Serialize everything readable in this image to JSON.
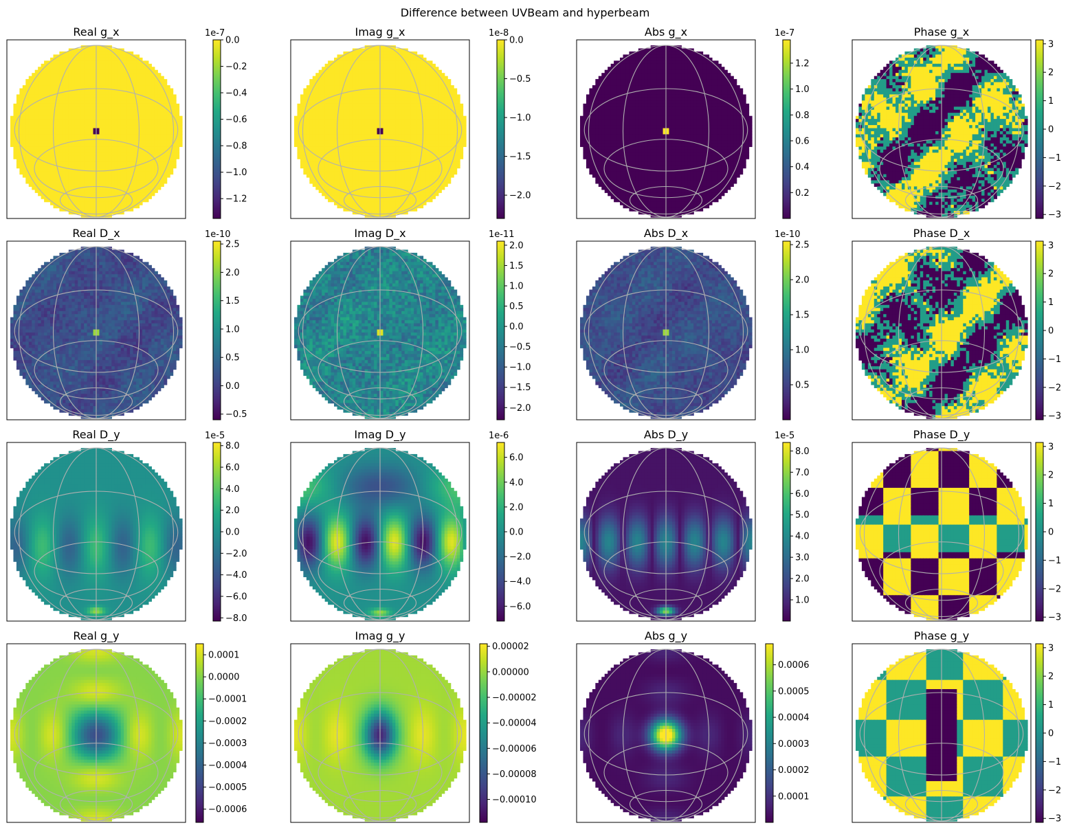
{
  "figure": {
    "suptitle": "Difference between UVBeam and hyperbeam"
  },
  "colormap": [
    "#440154",
    "#482475",
    "#414487",
    "#355f8d",
    "#2a788e",
    "#21918c",
    "#22a884",
    "#44bf70",
    "#7ad151",
    "#bddf26",
    "#fde725"
  ],
  "chart_data": [
    {
      "type": "heatmap",
      "title": "Real g_x",
      "offset_text": "1e-7",
      "ticks": [
        0.0,
        -0.2,
        -0.4,
        -0.6,
        -0.8,
        -1.0,
        -1.2
      ],
      "vmin": -1.35,
      "vmax": 0.0,
      "pattern": "uniform-high"
    },
    {
      "type": "heatmap",
      "title": "Imag g_x",
      "offset_text": "1e-8",
      "ticks": [
        0.0,
        -0.5,
        -1.0,
        -1.5,
        -2.0
      ],
      "vmin": -2.3,
      "vmax": 0.0,
      "pattern": "uniform-high"
    },
    {
      "type": "heatmap",
      "title": "Abs g_x",
      "offset_text": "1e-7",
      "ticks": [
        1.2,
        1.0,
        0.8,
        0.6,
        0.4,
        0.2
      ],
      "vmin": 0.0,
      "vmax": 1.38,
      "pattern": "uniform-low"
    },
    {
      "type": "heatmap",
      "title": "Phase g_x",
      "offset_text": "",
      "ticks": [
        3,
        2,
        1,
        0,
        -1,
        -2,
        -3
      ],
      "vmin": -3.14,
      "vmax": 3.14,
      "pattern": "phase-noise"
    },
    {
      "type": "heatmap",
      "title": "Real D_x",
      "offset_text": "1e-10",
      "ticks": [
        2.5,
        2.0,
        1.5,
        1.0,
        0.5,
        0.0,
        -0.5
      ],
      "vmin": -0.6,
      "vmax": 2.55,
      "pattern": "noise-low"
    },
    {
      "type": "heatmap",
      "title": "Imag D_x",
      "offset_text": "1e-11",
      "ticks": [
        2.0,
        1.5,
        1.0,
        0.5,
        0.0,
        -0.5,
        -1.0,
        -1.5,
        -2.0
      ],
      "vmin": -2.3,
      "vmax": 2.1,
      "pattern": "noise-mid"
    },
    {
      "type": "heatmap",
      "title": "Abs D_x",
      "offset_text": "1e-10",
      "ticks": [
        2.5,
        2.0,
        1.5,
        1.0,
        0.5
      ],
      "vmin": 0.0,
      "vmax": 2.55,
      "pattern": "noise-low"
    },
    {
      "type": "heatmap",
      "title": "Phase D_x",
      "offset_text": "",
      "ticks": [
        3,
        2,
        1,
        0,
        -1,
        -2,
        -3
      ],
      "vmin": -3.14,
      "vmax": 3.14,
      "pattern": "phase-noise"
    },
    {
      "type": "heatmap",
      "title": "Real D_y",
      "offset_text": "1e-5",
      "ticks": [
        8,
        6,
        4,
        2,
        0,
        -2,
        -4,
        -6,
        -8
      ],
      "vmin": -8.3,
      "vmax": 8.3,
      "pattern": "wave-real"
    },
    {
      "type": "heatmap",
      "title": "Imag D_y",
      "offset_text": "1e-6",
      "ticks": [
        6,
        4,
        2,
        0,
        -2,
        -4,
        -6
      ],
      "vmin": -7.2,
      "vmax": 7.2,
      "pattern": "wave-imag"
    },
    {
      "type": "heatmap",
      "title": "Abs D_y",
      "offset_text": "1e-5",
      "ticks": [
        8,
        7,
        6,
        5,
        4,
        3,
        2,
        1
      ],
      "vmin": 0.0,
      "vmax": 8.4,
      "pattern": "wave-abs"
    },
    {
      "type": "heatmap",
      "title": "Phase D_y",
      "offset_text": "",
      "ticks": [
        3,
        2,
        1,
        0,
        -1,
        -2,
        -3
      ],
      "vmin": -3.14,
      "vmax": 3.14,
      "pattern": "phase-blocks"
    },
    {
      "type": "heatmap",
      "title": "Real g_y",
      "offset_text": "",
      "ticks": [
        "0.0001",
        "0.0000",
        "−0.0001",
        "−0.0002",
        "−0.0003",
        "−0.0004",
        "−0.0005",
        "−0.0006"
      ],
      "vmin": -0.00066,
      "vmax": 0.00015,
      "pattern": "center-dip"
    },
    {
      "type": "heatmap",
      "title": "Imag g_y",
      "offset_text": "",
      "ticks": [
        "0.00002",
        "0.00000",
        "−0.00002",
        "−0.00004",
        "−0.00006",
        "−0.00008",
        "−0.00010"
      ],
      "vmin": -0.000118,
      "vmax": 2.2e-05,
      "pattern": "center-dip-soft"
    },
    {
      "type": "heatmap",
      "title": "Abs g_y",
      "offset_text": "",
      "ticks": [
        "0.0006",
        "0.0005",
        "0.0004",
        "0.0003",
        "0.0002",
        "0.0001"
      ],
      "vmin": 0.0,
      "vmax": 0.00068,
      "pattern": "center-peak"
    },
    {
      "type": "heatmap",
      "title": "Phase g_y",
      "offset_text": "",
      "ticks": [
        3,
        2,
        1,
        0,
        -1,
        -2,
        -3
      ],
      "vmin": -3.14,
      "vmax": 3.14,
      "pattern": "phase-blocks-2"
    }
  ]
}
